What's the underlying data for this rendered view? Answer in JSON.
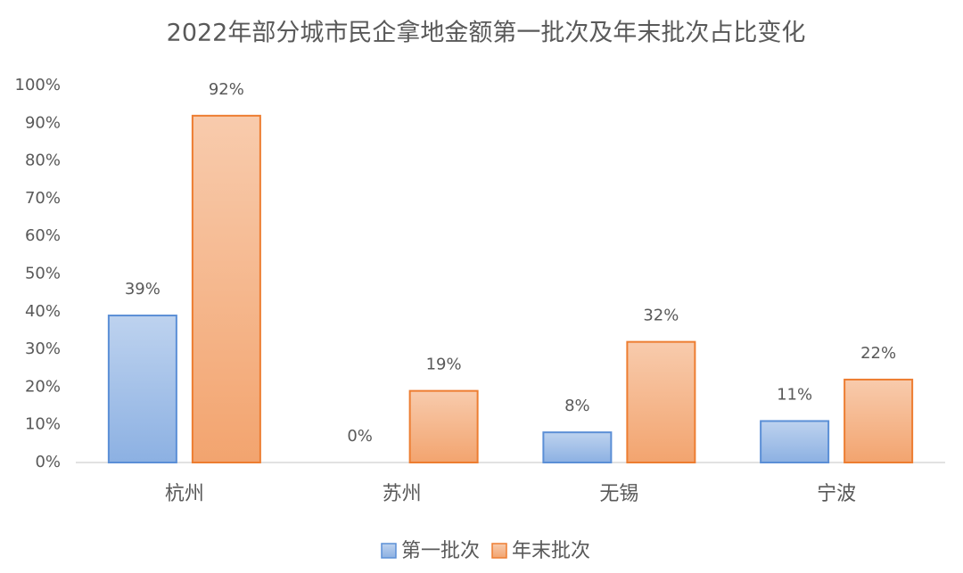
{
  "chart_data": {
    "type": "bar",
    "title": "2022年部分城市民企拿地金额第一批次及年末批次占比变化",
    "categories": [
      "杭州",
      "苏州",
      "无锡",
      "宁波"
    ],
    "series": [
      {
        "name": "第一批次",
        "color": "#5b8fd6",
        "values": [
          39,
          0,
          8,
          11
        ],
        "value_labels": [
          "39%",
          "0%",
          "8%",
          "11%"
        ]
      },
      {
        "name": "年末批次",
        "color": "#ed7d31",
        "values": [
          92,
          19,
          32,
          22
        ],
        "value_labels": [
          "92%",
          "19%",
          "32%",
          "22%"
        ]
      }
    ],
    "ylim": [
      0,
      100
    ],
    "yticks": [
      {
        "value": 0,
        "label": "0%"
      },
      {
        "value": 10,
        "label": "10%"
      },
      {
        "value": 20,
        "label": "20%"
      },
      {
        "value": 30,
        "label": "30%"
      },
      {
        "value": 40,
        "label": "40%"
      },
      {
        "value": 50,
        "label": "50%"
      },
      {
        "value": 60,
        "label": "60%"
      },
      {
        "value": 70,
        "label": "70%"
      },
      {
        "value": 80,
        "label": "80%"
      },
      {
        "value": 90,
        "label": "90%"
      },
      {
        "value": 100,
        "label": "100%"
      }
    ],
    "grid": false,
    "legend": "bottom"
  }
}
